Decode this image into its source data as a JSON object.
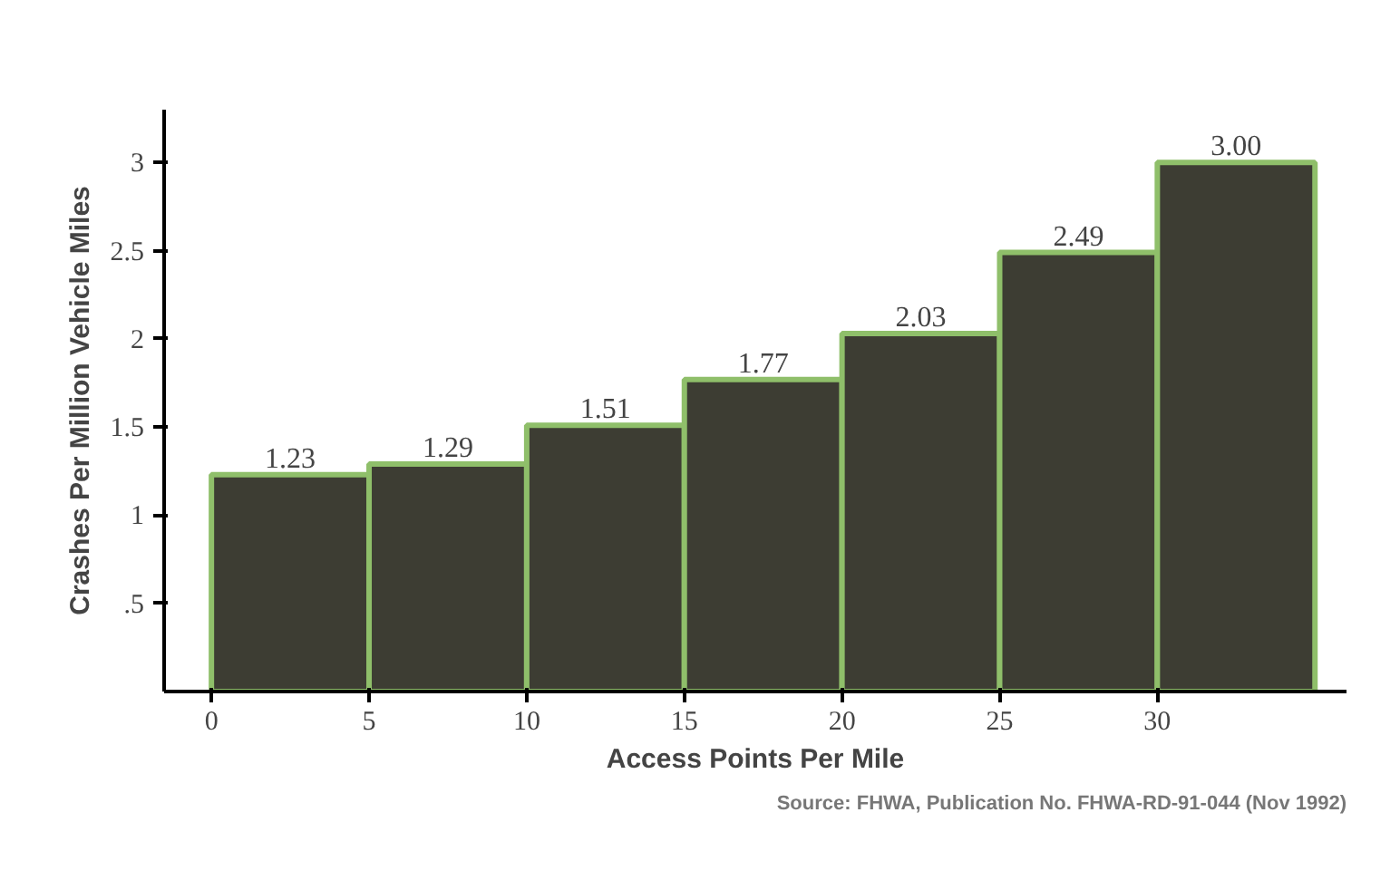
{
  "chart_data": {
    "type": "histogram",
    "xlabel": "Access Points Per Mile",
    "ylabel": "Crashes Per Million Vehicle Miles",
    "bins": [
      0,
      5,
      10,
      15,
      20,
      25,
      30,
      35
    ],
    "values": [
      1.23,
      1.29,
      1.51,
      1.77,
      2.03,
      2.49,
      3.0
    ],
    "value_labels": [
      "1.23",
      "1.29",
      "1.51",
      "1.77",
      "2.03",
      "2.49",
      "3.00"
    ],
    "color": "#3d3d33",
    "xlim": [
      -1.5,
      36
    ],
    "xticks": [
      0,
      5,
      10,
      15,
      20,
      25,
      30
    ],
    "ylim": [
      0,
      3.3
    ],
    "yticks": [
      {
        "value": 0.5,
        "label": ".5"
      },
      1,
      1.5,
      2,
      2.5,
      3
    ],
    "grid": false,
    "annotations": [
      "Source: FHWA, Publication No. FHWA-RD-91-044 (Nov 1992)"
    ]
  }
}
